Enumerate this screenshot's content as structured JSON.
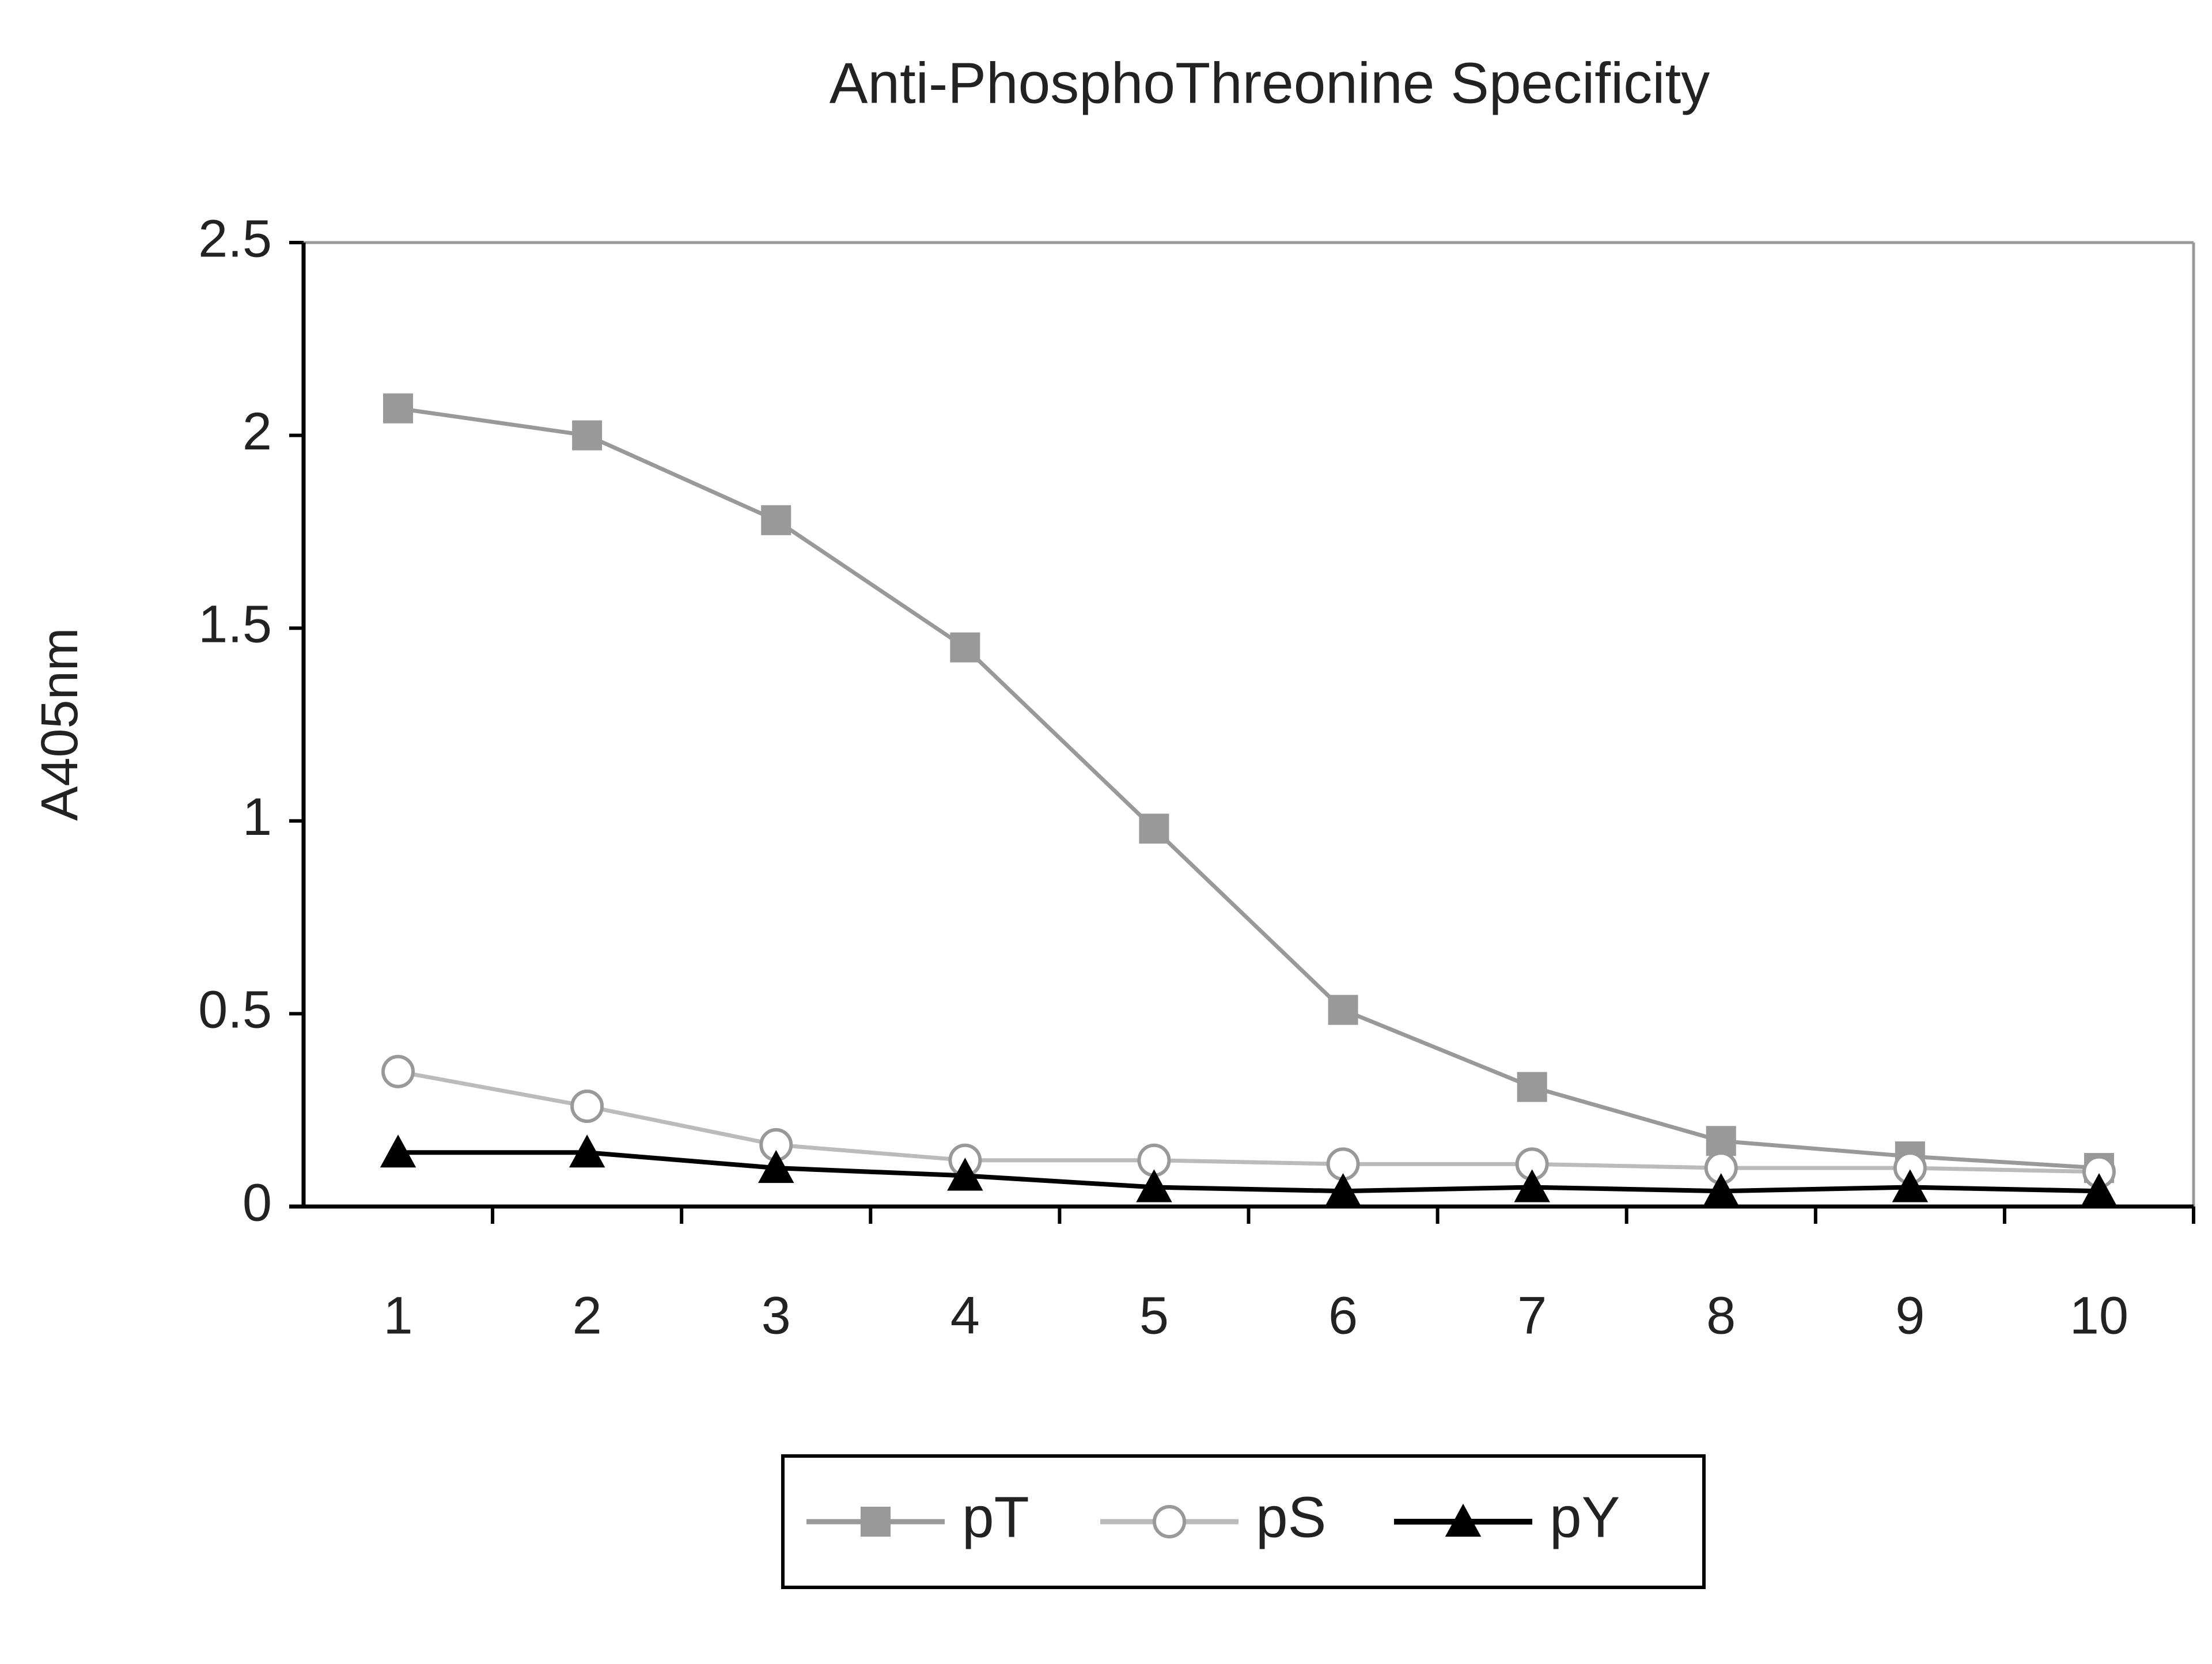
{
  "chart_data": {
    "type": "line",
    "title": "Anti-PhosphoThreonine Specificity",
    "y_label": "A405nm",
    "categories": [
      "1",
      "2",
      "3",
      "4",
      "5",
      "6",
      "7",
      "8",
      "9",
      "10"
    ],
    "series": [
      {
        "name": "pT",
        "color": "#999999",
        "marker": "square",
        "values": [
          2.07,
          2.0,
          1.78,
          1.45,
          0.98,
          0.51,
          0.31,
          0.17,
          0.13,
          0.1
        ]
      },
      {
        "name": "pS",
        "color": "#bbbbbb",
        "marker": "circle",
        "values": [
          0.35,
          0.26,
          0.16,
          0.12,
          0.12,
          0.11,
          0.11,
          0.1,
          0.1,
          0.09
        ]
      },
      {
        "name": "pY",
        "color": "#000000",
        "marker": "triangle",
        "values": [
          0.14,
          0.14,
          0.1,
          0.08,
          0.05,
          0.04,
          0.05,
          0.04,
          0.05,
          0.04
        ]
      }
    ],
    "ylim": [
      0,
      2.5
    ],
    "yticks": [
      0,
      0.5,
      1,
      1.5,
      2,
      2.5
    ],
    "grid": false,
    "legend": "bottom"
  }
}
